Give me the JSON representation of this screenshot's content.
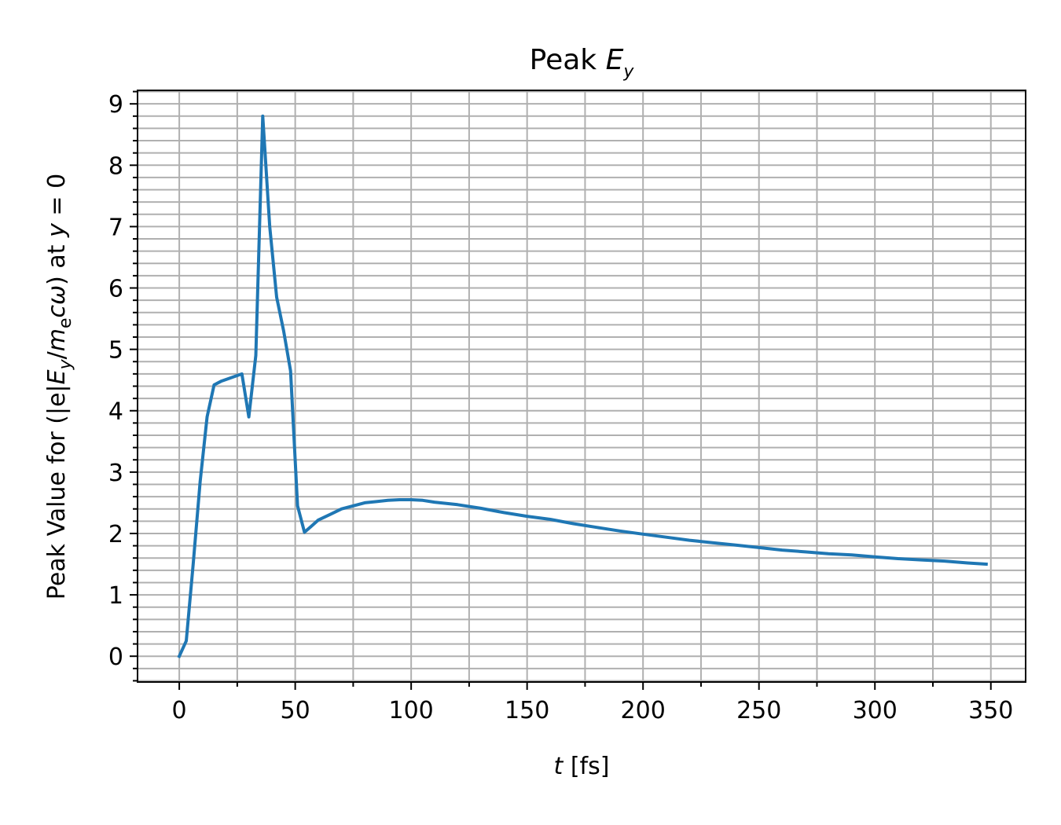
{
  "chart_data": {
    "type": "line",
    "title": {
      "text": "Peak ",
      "var": "E",
      "sub": "y"
    },
    "xlabel": {
      "var": "t",
      "rest": " [fs]"
    },
    "ylabel": {
      "pre": "Peak Value for (|e|",
      "E": "E",
      "Esub": "y",
      "slash": "/",
      "m": "m",
      "msub": "e",
      "comega": "cω",
      "post": ") at ",
      "yvar": "y",
      "eq": " = 0"
    },
    "xlim": [
      -18,
      365
    ],
    "ylim": [
      -0.42,
      9.22
    ],
    "xticks": [
      0,
      50,
      100,
      150,
      200,
      250,
      300,
      350
    ],
    "yticks": [
      0,
      1,
      2,
      3,
      4,
      5,
      6,
      7,
      8,
      9
    ],
    "x_minor_step": 25,
    "y_minor_step": 0.2,
    "grid": true,
    "grid_minor": true,
    "line_color": "#1f77b4",
    "series": [
      {
        "x": [
          0,
          3,
          6,
          9,
          12,
          15,
          18,
          21,
          24,
          27,
          30,
          33,
          36,
          39,
          42,
          45,
          48,
          51,
          54,
          57,
          60,
          65,
          70,
          75,
          80,
          85,
          90,
          95,
          100,
          105,
          110,
          120,
          130,
          140,
          150,
          160,
          170,
          180,
          190,
          200,
          210,
          220,
          230,
          240,
          250,
          260,
          270,
          280,
          290,
          300,
          310,
          320,
          330,
          340,
          348
        ],
        "y": [
          0.0,
          0.25,
          1.5,
          2.85,
          3.9,
          4.42,
          4.48,
          4.52,
          4.56,
          4.6,
          3.9,
          4.9,
          8.8,
          7.0,
          5.85,
          5.3,
          4.65,
          2.45,
          2.02,
          2.12,
          2.22,
          2.31,
          2.4,
          2.45,
          2.5,
          2.52,
          2.54,
          2.55,
          2.55,
          2.54,
          2.51,
          2.47,
          2.41,
          2.34,
          2.28,
          2.23,
          2.16,
          2.1,
          2.04,
          1.99,
          1.94,
          1.89,
          1.85,
          1.81,
          1.77,
          1.73,
          1.7,
          1.67,
          1.65,
          1.62,
          1.59,
          1.57,
          1.55,
          1.52,
          1.5
        ]
      }
    ]
  }
}
